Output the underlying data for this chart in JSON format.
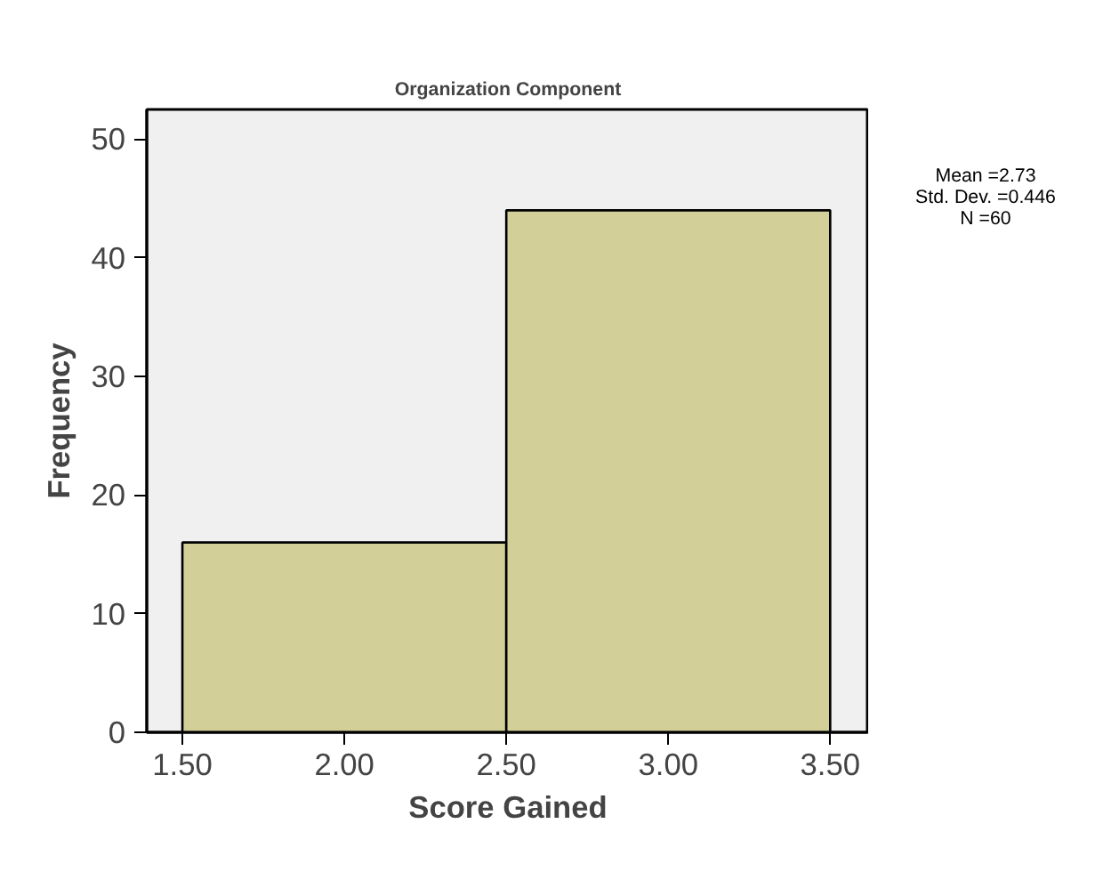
{
  "chart_data": {
    "type": "histogram",
    "title": "Organization Component",
    "xlabel": "Score Gained",
    "ylabel": "Frequency",
    "bins": [
      1.5,
      2.5,
      3.5
    ],
    "values": [
      16,
      44
    ],
    "color": "#d3cf99",
    "xlim": [
      1.39,
      3.62
    ],
    "xticks": [
      {
        "value": 1.5,
        "label": "1.50"
      },
      {
        "value": 2.0,
        "label": "2.00"
      },
      {
        "value": 2.5,
        "label": "2.50"
      },
      {
        "value": 3.0,
        "label": "3.00"
      },
      {
        "value": 3.5,
        "label": "3.50"
      }
    ],
    "ylim": [
      0,
      52.5
    ],
    "yticks": [
      0,
      10,
      20,
      30,
      40,
      50
    ],
    "grid": false,
    "annotations": [
      "Mean =2.73",
      "Std. Dev. =0.446",
      "N =60"
    ]
  }
}
